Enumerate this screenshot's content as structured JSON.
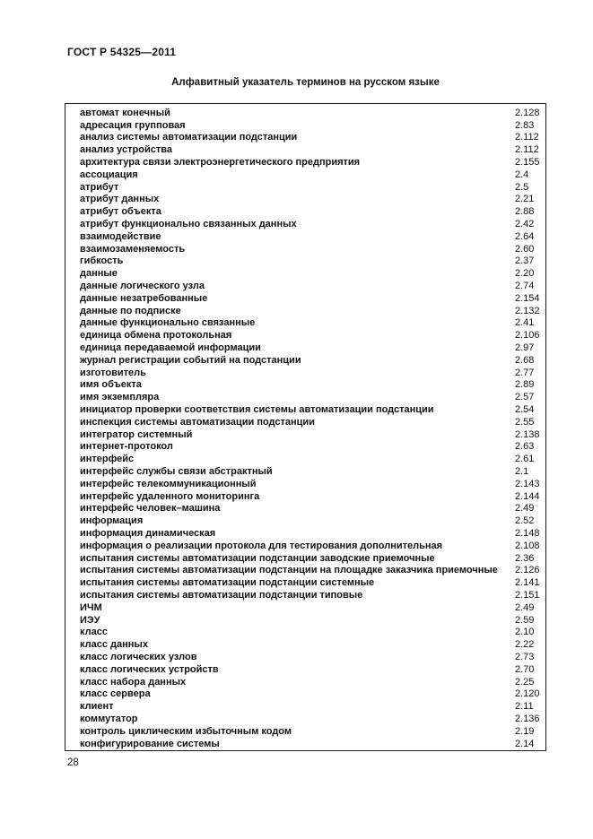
{
  "page": {
    "header": "ГОСТ Р 54325—2011",
    "title": "Алфавитный указатель терминов на русском языке",
    "page_number": "28"
  },
  "index": {
    "entries": [
      {
        "term": "автомат конечный",
        "ref": "2.128"
      },
      {
        "term": "адресация групповая",
        "ref": "2.83"
      },
      {
        "term": "анализ системы автоматизации подстанции",
        "ref": "2.112"
      },
      {
        "term": "анализ устройства",
        "ref": "2.112"
      },
      {
        "term": "архитектура связи электроэнергетического предприятия",
        "ref": "2.155"
      },
      {
        "term": "ассоциация",
        "ref": "2.4"
      },
      {
        "term": "атрибут",
        "ref": "2.5"
      },
      {
        "term": "атрибут данных",
        "ref": "2.21"
      },
      {
        "term": "атрибут объекта",
        "ref": "2.88"
      },
      {
        "term": "атрибут функционально связанных данных",
        "ref": "2.42"
      },
      {
        "term": "взаимодействие",
        "ref": "2.64"
      },
      {
        "term": "взаимозаменяемость",
        "ref": "2.60"
      },
      {
        "term": "гибкость",
        "ref": "2.37"
      },
      {
        "term": "данные",
        "ref": "2.20"
      },
      {
        "term": "данные логического узла",
        "ref": "2.74"
      },
      {
        "term": "данные незатребованные",
        "ref": "2.154"
      },
      {
        "term": "данные по подписке",
        "ref": "2.132"
      },
      {
        "term": "данные функционально связанные",
        "ref": "2.41"
      },
      {
        "term": "единица обмена протокольная",
        "ref": "2.106"
      },
      {
        "term": "единица передаваемой информации",
        "ref": "2.97"
      },
      {
        "term": "журнал регистрации событий на подстанции",
        "ref": "2.68"
      },
      {
        "term": "изготовитель",
        "ref": "2.77"
      },
      {
        "term": "имя объекта",
        "ref": "2.89"
      },
      {
        "term": "имя экземпляра",
        "ref": "2.57"
      },
      {
        "term": "инициатор проверки соответствия системы автоматизации подстанции",
        "ref": "2.54"
      },
      {
        "term": "инспекция системы автоматизации подстанции",
        "ref": "2.55"
      },
      {
        "term": "интегратор системный",
        "ref": "2.138"
      },
      {
        "term": "интернет-протокол",
        "ref": "2.63"
      },
      {
        "term": "интерфейс",
        "ref": "2.61"
      },
      {
        "term": "интерфейс службы связи абстрактный",
        "ref": "2.1"
      },
      {
        "term": "интерфейс телекоммуникационный",
        "ref": "2.143"
      },
      {
        "term": "интерфейс удаленного мониторинга",
        "ref": "2.144"
      },
      {
        "term": "интерфейс человек–машина",
        "ref": "2.49"
      },
      {
        "term": "информация",
        "ref": "2.52"
      },
      {
        "term": "информация динамическая",
        "ref": "2.148"
      },
      {
        "term": "информация о реализации протокола для тестирования дополнительная",
        "ref": "2.108"
      },
      {
        "term": "испытания системы автоматизации подстанции заводские приемочные",
        "ref": "2.36"
      },
      {
        "term": "испытания системы автоматизации подстанции на площадке заказчика приемочные",
        "ref": "2.126"
      },
      {
        "term": "испытания системы автоматизации подстанции системные",
        "ref": "2.141"
      },
      {
        "term": "испытания системы автоматизации подстанции типовые",
        "ref": "2.151"
      },
      {
        "term": "ИЧМ",
        "ref": "2.49"
      },
      {
        "term": "ИЭУ",
        "ref": "2.59"
      },
      {
        "term": "класс",
        "ref": "2.10"
      },
      {
        "term": "класс данных",
        "ref": "2.22"
      },
      {
        "term": "класс логических узлов",
        "ref": "2.73"
      },
      {
        "term": "класс логических устройств",
        "ref": "2.70"
      },
      {
        "term": "класс набора данных",
        "ref": "2.25"
      },
      {
        "term": "класс сервера",
        "ref": "2.120"
      },
      {
        "term": "клиент",
        "ref": "2.11"
      },
      {
        "term": "коммутатор",
        "ref": "2.136"
      },
      {
        "term": "контроль циклическим избыточным кодом",
        "ref": "2.19"
      },
      {
        "term": "конфигурирование системы",
        "ref": "2.14"
      }
    ]
  }
}
